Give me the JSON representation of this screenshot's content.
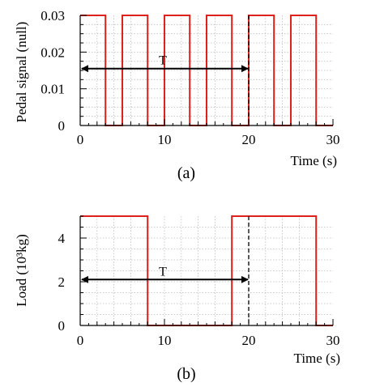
{
  "chart_data": [
    {
      "type": "line",
      "panel_label": "(a)",
      "xlabel": "Time (s)",
      "ylabel": "Pedal signal  (null)",
      "xlim": [
        0,
        30
      ],
      "ylim": [
        0,
        0.03
      ],
      "xticks": [
        0,
        10,
        20,
        30
      ],
      "yticks": [
        0,
        0.01,
        0.02,
        0.03
      ],
      "xtick_labels": [
        "0",
        "10",
        "20",
        "30"
      ],
      "ytick_labels": [
        "0",
        "0.01",
        "0.02",
        "0.03"
      ],
      "grid": true,
      "series": [
        {
          "color": "#e0201b",
          "x": [
            0,
            3,
            3,
            5,
            5,
            8,
            8,
            10,
            10,
            13,
            13,
            15,
            15,
            18,
            18,
            20,
            20,
            23,
            23,
            25,
            25,
            28,
            28,
            30
          ],
          "y": [
            0.03,
            0.03,
            0,
            0,
            0.03,
            0.03,
            0,
            0,
            0.03,
            0.03,
            0,
            0,
            0.03,
            0.03,
            0,
            0,
            0.03,
            0.03,
            0,
            0,
            0.03,
            0.03,
            0,
            0
          ]
        }
      ],
      "annotations": [
        {
          "type": "double_arrow",
          "label": "T",
          "x_start": 0,
          "x_end": 20,
          "y": 0.0155
        },
        {
          "type": "vline_dashed",
          "x": 20
        }
      ]
    },
    {
      "type": "line",
      "panel_label": "(b)",
      "xlabel": "Time (s)",
      "ylabel": "Load (10³kg)",
      "xlim": [
        0,
        30
      ],
      "ylim": [
        0,
        5
      ],
      "xticks": [
        0,
        10,
        20,
        30
      ],
      "yticks": [
        0,
        2,
        4
      ],
      "xtick_labels": [
        "0",
        "10",
        "20",
        "30"
      ],
      "ytick_labels": [
        "0",
        "2",
        "4"
      ],
      "grid": true,
      "series": [
        {
          "color": "#e0201b",
          "x": [
            0,
            8,
            8,
            18,
            18,
            28,
            28,
            30
          ],
          "y": [
            5,
            5,
            0,
            0,
            5,
            5,
            0,
            0
          ]
        }
      ],
      "annotations": [
        {
          "type": "double_arrow",
          "label": "T",
          "x_start": 0,
          "x_end": 20,
          "y": 2.1
        },
        {
          "type": "vline_dashed",
          "x": 20
        }
      ]
    }
  ]
}
